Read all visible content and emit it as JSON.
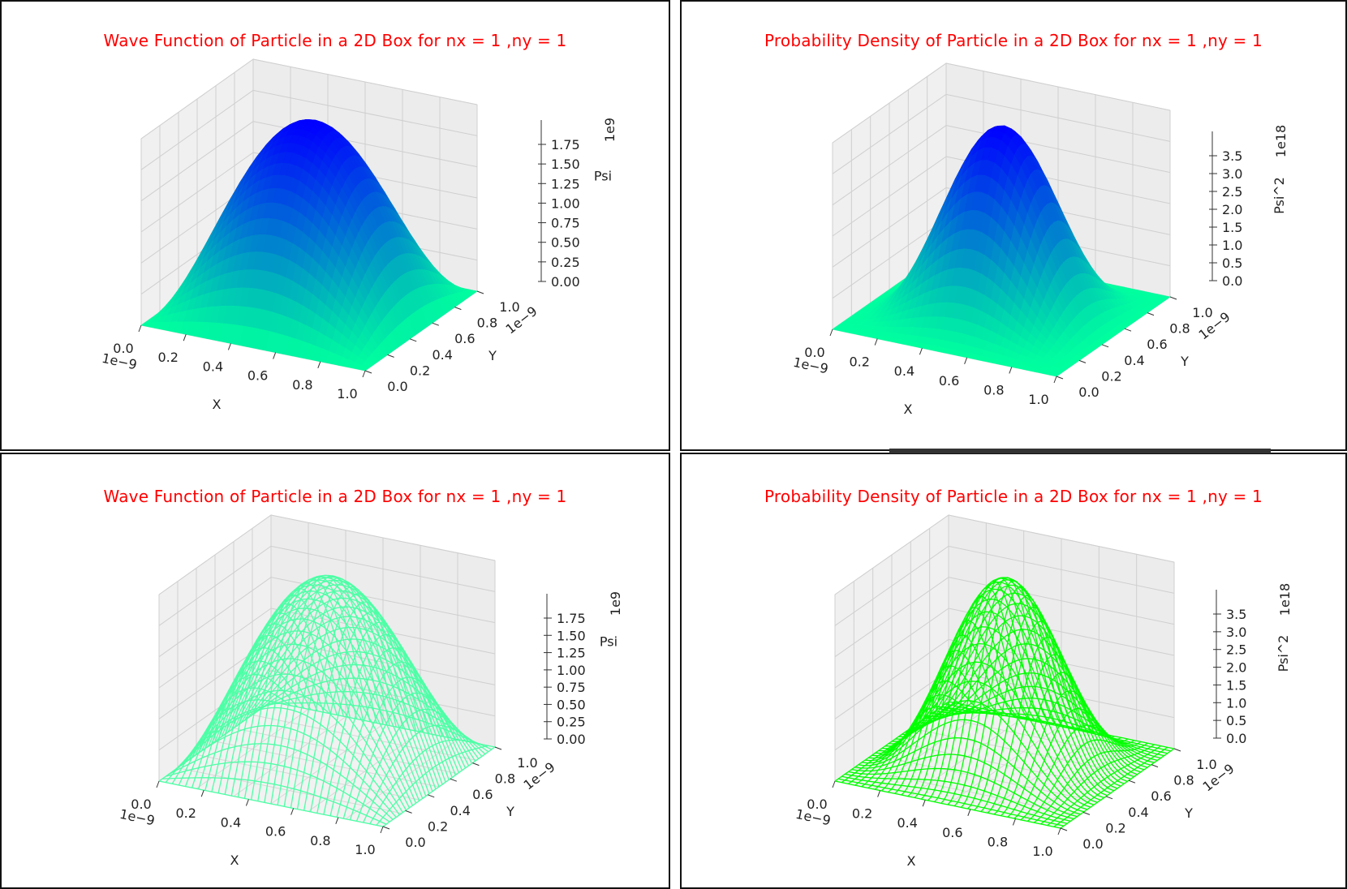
{
  "chart_data": [
    {
      "type": "surface3d",
      "title": "Wave Function of Particle in a 2D Box for nx =  1 ,ny = 1",
      "xlabel": "X",
      "ylabel": "Y",
      "zlabel": "Psi",
      "x_offset": "1e−9",
      "y_offset": "1e−9",
      "z_offset": "1e9",
      "xlim": [
        0,
        1.0
      ],
      "ylim": [
        0,
        1.0
      ],
      "zlim": [
        0,
        2.0
      ],
      "x_ticks": [
        "0.0",
        "0.2",
        "0.4",
        "0.6",
        "0.8",
        "1.0"
      ],
      "y_ticks": [
        "0.0",
        "0.2",
        "0.4",
        "0.6",
        "0.8",
        "1.0"
      ],
      "z_ticks": [
        "0.00",
        "0.25",
        "0.50",
        "0.75",
        "1.00",
        "1.25",
        "1.50",
        "1.75"
      ],
      "function": "Psi = (2/L) sin(pi x / L) sin(pi y / L), L = 1e-9",
      "peak": 2.0,
      "power": 1,
      "style": "solid",
      "colormap": [
        "#00ff9f",
        "#0000ff"
      ]
    },
    {
      "type": "surface3d",
      "title": "Probability Density of Particle in a 2D Box for nx =  1 ,ny = 1",
      "xlabel": "X",
      "ylabel": "Y",
      "zlabel": "Psi^2",
      "x_offset": "1e−9",
      "y_offset": "1e−9",
      "z_offset": "1e18",
      "xlim": [
        0,
        1.0
      ],
      "ylim": [
        0,
        1.0
      ],
      "zlim": [
        0,
        4.0
      ],
      "x_ticks": [
        "0.0",
        "0.2",
        "0.4",
        "0.6",
        "0.8",
        "1.0"
      ],
      "y_ticks": [
        "0.0",
        "0.2",
        "0.4",
        "0.6",
        "0.8",
        "1.0"
      ],
      "z_ticks": [
        "0.0",
        "0.5",
        "1.0",
        "1.5",
        "2.0",
        "2.5",
        "3.0",
        "3.5"
      ],
      "function": "Psi^2 = (4/L^2) sin^2(pi x / L) sin^2(pi y / L), L = 1e-9",
      "peak": 4.0,
      "power": 2,
      "style": "solid",
      "colormap": [
        "#00ff9f",
        "#0000ff"
      ]
    },
    {
      "type": "wireframe3d",
      "title": "Wave Function of Particle in a 2D Box for nx =  1 ,ny = 1",
      "xlabel": "X",
      "ylabel": "Y",
      "zlabel": "Psi",
      "x_offset": "1e−9",
      "y_offset": "1e−9",
      "z_offset": "1e9",
      "xlim": [
        0,
        1.0
      ],
      "ylim": [
        0,
        1.0
      ],
      "zlim": [
        0,
        2.0
      ],
      "x_ticks": [
        "0.0",
        "0.2",
        "0.4",
        "0.6",
        "0.8",
        "1.0"
      ],
      "y_ticks": [
        "0.0",
        "0.2",
        "0.4",
        "0.6",
        "0.8",
        "1.0"
      ],
      "z_ticks": [
        "0.00",
        "0.25",
        "0.50",
        "0.75",
        "1.00",
        "1.25",
        "1.50",
        "1.75"
      ],
      "function": "Psi = (2/L) sin(pi x / L) sin(pi y / L), L = 1e-9",
      "peak": 2.0,
      "power": 1,
      "style": "wire",
      "color": "#4dffa6"
    },
    {
      "type": "wireframe3d",
      "title": "Probability Density of Particle in a 2D Box for nx =  1 ,ny = 1",
      "xlabel": "X",
      "ylabel": "Y",
      "zlabel": "Psi^2",
      "x_offset": "1e−9",
      "y_offset": "1e−9",
      "z_offset": "1e18",
      "xlim": [
        0,
        1.0
      ],
      "ylim": [
        0,
        1.0
      ],
      "zlim": [
        0,
        4.0
      ],
      "x_ticks": [
        "0.0",
        "0.2",
        "0.4",
        "0.6",
        "0.8",
        "1.0"
      ],
      "y_ticks": [
        "0.0",
        "0.2",
        "0.4",
        "0.6",
        "0.8",
        "1.0"
      ],
      "z_ticks": [
        "0.0",
        "0.5",
        "1.0",
        "1.5",
        "2.0",
        "2.5",
        "3.0",
        "3.5"
      ],
      "function": "Psi^2 = (4/L^2) sin^2(pi x / L) sin^2(pi y / L), L = 1e-9",
      "peak": 4.0,
      "power": 2,
      "style": "wire",
      "color": "#00ff00"
    }
  ]
}
